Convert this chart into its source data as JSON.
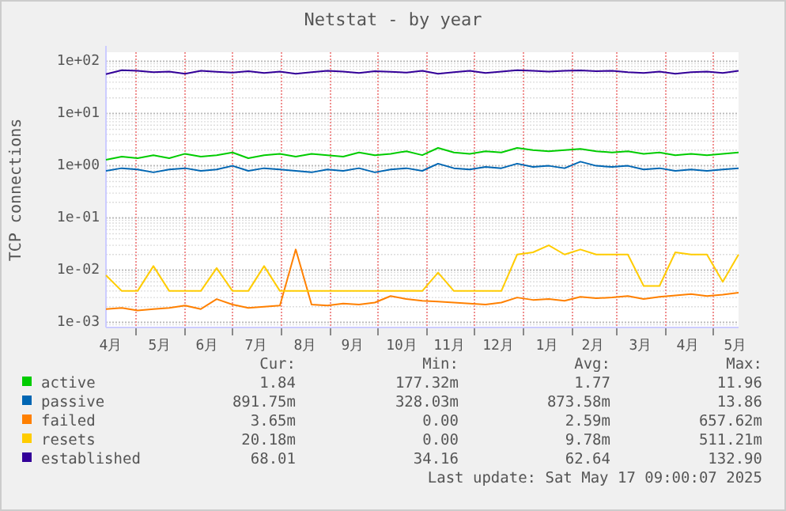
{
  "chart_data": {
    "type": "line",
    "title": "Netstat - by year",
    "ylabel": "TCP connections",
    "log": true,
    "grid": true,
    "legend": "bottom",
    "x": [
      "2024-04-12",
      "2024-04-22",
      "2024-05-02",
      "2024-05-12",
      "2024-05-22",
      "2024-06-01",
      "2024-06-11",
      "2024-06-21",
      "2024-07-01",
      "2024-07-11",
      "2024-07-21",
      "2024-07-31",
      "2024-08-10",
      "2024-08-20",
      "2024-08-30",
      "2024-09-09",
      "2024-09-19",
      "2024-09-29",
      "2024-10-09",
      "2024-10-19",
      "2024-10-29",
      "2024-11-08",
      "2024-11-18",
      "2024-11-28",
      "2024-12-08",
      "2024-12-18",
      "2024-12-28",
      "2025-01-07",
      "2025-01-17",
      "2025-01-27",
      "2025-02-06",
      "2025-02-16",
      "2025-02-26",
      "2025-03-08",
      "2025-03-18",
      "2025-03-28",
      "2025-04-07",
      "2025-04-17",
      "2025-04-27",
      "2025-05-07",
      "2025-05-17"
    ],
    "xlim": [
      "2024-04-12",
      "2025-05-17"
    ],
    "xticks": [
      {
        "value": "2024-04-15",
        "label": "4月"
      },
      {
        "value": "2024-05-01",
        "label": null
      },
      {
        "value": "2024-05-16",
        "label": "5月"
      },
      {
        "value": "2024-06-01",
        "label": null
      },
      {
        "value": "2024-06-15",
        "label": "6月"
      },
      {
        "value": "2024-07-01",
        "label": null
      },
      {
        "value": "2024-07-16",
        "label": "7月"
      },
      {
        "value": "2024-08-01",
        "label": null
      },
      {
        "value": "2024-08-16",
        "label": "8月"
      },
      {
        "value": "2024-09-01",
        "label": null
      },
      {
        "value": "2024-09-15",
        "label": "9月"
      },
      {
        "value": "2024-10-01",
        "label": null
      },
      {
        "value": "2024-10-16",
        "label": "10月"
      },
      {
        "value": "2024-11-01",
        "label": null
      },
      {
        "value": "2024-11-15",
        "label": "11月"
      },
      {
        "value": "2024-12-01",
        "label": null
      },
      {
        "value": "2024-12-16",
        "label": "12月"
      },
      {
        "value": "2025-01-01",
        "label": null
      },
      {
        "value": "2025-01-16",
        "label": "1月"
      },
      {
        "value": "2025-02-01",
        "label": null
      },
      {
        "value": "2025-02-14",
        "label": "2月"
      },
      {
        "value": "2025-03-01",
        "label": null
      },
      {
        "value": "2025-03-16",
        "label": "3月"
      },
      {
        "value": "2025-04-01",
        "label": null
      },
      {
        "value": "2025-04-15",
        "label": "4月"
      },
      {
        "value": "2025-05-01",
        "label": null
      },
      {
        "value": "2025-05-15",
        "label": "5月"
      }
    ],
    "ylim": [
      0.0008,
      150
    ],
    "yticks": [
      {
        "value": 0.001,
        "label": "1e-03"
      },
      {
        "value": 0.01,
        "label": "1e-02"
      },
      {
        "value": 0.1,
        "label": "1e-01"
      },
      {
        "value": 1,
        "label": "1e+00"
      },
      {
        "value": 10,
        "label": "1e+01"
      },
      {
        "value": 100,
        "label": "1e+02"
      }
    ],
    "series": [
      {
        "name": "active",
        "color": "#00cc00",
        "values": [
          1.3,
          1.5,
          1.4,
          1.6,
          1.4,
          1.7,
          1.5,
          1.6,
          1.8,
          1.4,
          1.6,
          1.7,
          1.5,
          1.7,
          1.6,
          1.5,
          1.8,
          1.6,
          1.7,
          1.9,
          1.6,
          2.2,
          1.8,
          1.7,
          1.9,
          1.8,
          2.2,
          2.0,
          1.9,
          2.0,
          2.1,
          1.9,
          1.8,
          1.9,
          1.7,
          1.8,
          1.6,
          1.7,
          1.6,
          1.7,
          1.8
        ]
      },
      {
        "name": "passive",
        "color": "#0066b3",
        "values": [
          0.8,
          0.9,
          0.85,
          0.75,
          0.85,
          0.9,
          0.8,
          0.85,
          1.0,
          0.8,
          0.9,
          0.85,
          0.8,
          0.75,
          0.85,
          0.8,
          0.9,
          0.75,
          0.85,
          0.9,
          0.8,
          1.1,
          0.9,
          0.85,
          0.95,
          0.9,
          1.1,
          0.95,
          1.0,
          0.9,
          1.2,
          1.0,
          0.95,
          1.0,
          0.85,
          0.9,
          0.8,
          0.85,
          0.8,
          0.85,
          0.9
        ]
      },
      {
        "name": "failed",
        "color": "#ff8000",
        "values": [
          0.0018,
          0.0019,
          0.0017,
          0.0018,
          0.0019,
          0.0021,
          0.0018,
          0.0028,
          0.0022,
          0.0019,
          0.002,
          0.0021,
          0.025,
          0.0022,
          0.0021,
          0.0023,
          0.0022,
          0.0024,
          0.0032,
          0.0028,
          0.0026,
          0.0025,
          0.0024,
          0.0023,
          0.0022,
          0.0024,
          0.003,
          0.0027,
          0.0028,
          0.0026,
          0.0031,
          0.0029,
          0.003,
          0.0032,
          0.0028,
          0.0031,
          0.0033,
          0.0035,
          0.0032,
          0.0034,
          0.0037
        ]
      },
      {
        "name": "resets",
        "color": "#ffcc00",
        "values": [
          0.008,
          0.004,
          0.004,
          0.012,
          0.004,
          0.004,
          0.004,
          0.011,
          0.004,
          0.004,
          0.012,
          0.004,
          0.004,
          0.004,
          0.004,
          0.004,
          0.004,
          0.004,
          0.004,
          0.004,
          0.004,
          0.009,
          0.004,
          0.004,
          0.004,
          0.004,
          0.02,
          0.022,
          0.03,
          0.02,
          0.025,
          0.02,
          0.02,
          0.02,
          0.005,
          0.005,
          0.022,
          0.02,
          0.02,
          0.006,
          0.02
        ]
      },
      {
        "name": "established",
        "color": "#330099",
        "values": [
          57,
          68,
          66,
          62,
          64,
          58,
          66,
          63,
          61,
          65,
          60,
          64,
          58,
          62,
          66,
          64,
          60,
          65,
          63,
          61,
          66,
          58,
          62,
          66,
          60,
          64,
          68,
          66,
          64,
          66,
          67,
          65,
          66,
          62,
          60,
          64,
          58,
          62,
          64,
          60,
          66
        ]
      }
    ],
    "annotations": [
      "Cur:",
      "Min:",
      "Avg:",
      "Max:",
      "1.84",
      "177.32m",
      "1.77",
      "11.96",
      "891.75m",
      "328.03m",
      "873.58m",
      "13.86",
      "3.65m",
      "0.00",
      "2.59m",
      "657.62m",
      "20.18m",
      "0.00",
      "9.78m",
      "511.21m",
      "68.01",
      "34.16",
      "62.64",
      "132.90",
      "Last update: Sat May 17 09:00:07 2025"
    ]
  }
}
